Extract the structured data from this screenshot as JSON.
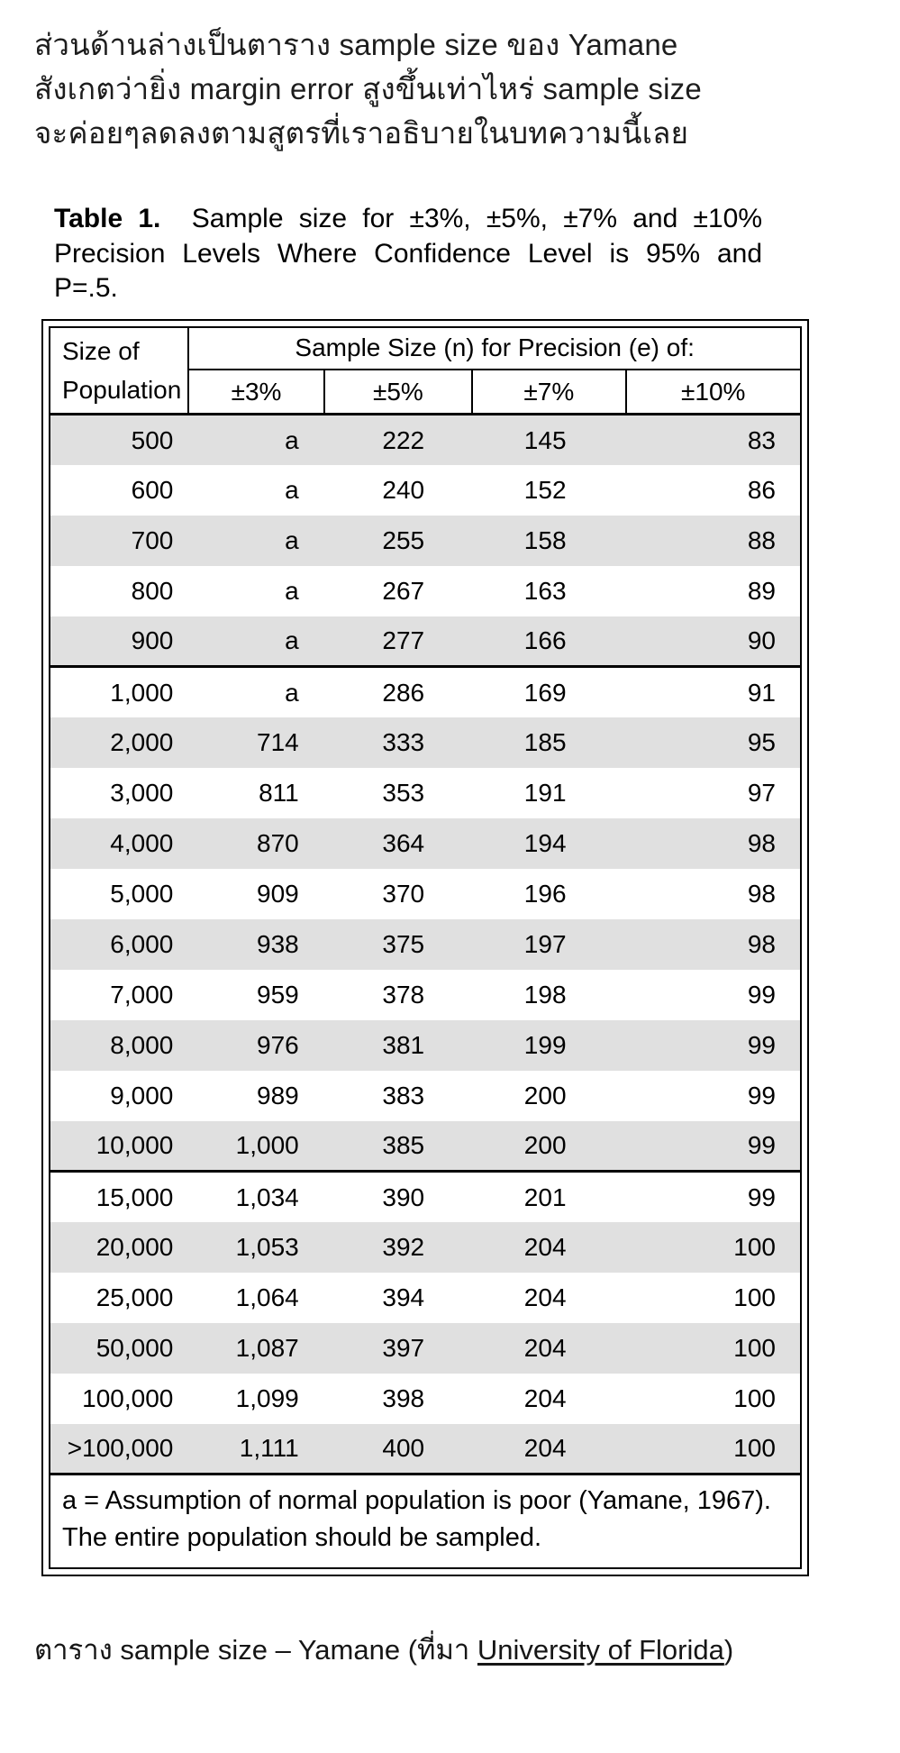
{
  "intro": {
    "lines": [
      "ส่วนด้านล่างเป็นตาราง sample size ของ Yamane",
      "สังเกตว่ายิ่ง margin error สูงขึ้นเท่าไหร่ sample size",
      "จะค่อยๆลดลงตามสูตรที่เราอธิบายในบทความนี้เลย"
    ]
  },
  "table": {
    "caption_label": "Table 1.",
    "caption_text": "Sample size for ±3%, ±5%, ±7% and ±10% Precision Levels Where Confidence Level is 95% and P=.5.",
    "header": {
      "population_label": "Size of Population",
      "group_label": "Sample Size (n) for Precision (e) of:",
      "precisions": [
        "±3%",
        "±5%",
        "±7%",
        "±10%"
      ]
    },
    "row_groups": [
      {
        "rows": [
          [
            "500",
            "a",
            "222",
            "145",
            "83"
          ],
          [
            "600",
            "a",
            "240",
            "152",
            "86"
          ],
          [
            "700",
            "a",
            "255",
            "158",
            "88"
          ],
          [
            "800",
            "a",
            "267",
            "163",
            "89"
          ],
          [
            "900",
            "a",
            "277",
            "166",
            "90"
          ]
        ]
      },
      {
        "rows": [
          [
            "1,000",
            "a",
            "286",
            "169",
            "91"
          ],
          [
            "2,000",
            "714",
            "333",
            "185",
            "95"
          ],
          [
            "3,000",
            "811",
            "353",
            "191",
            "97"
          ],
          [
            "4,000",
            "870",
            "364",
            "194",
            "98"
          ],
          [
            "5,000",
            "909",
            "370",
            "196",
            "98"
          ],
          [
            "6,000",
            "938",
            "375",
            "197",
            "98"
          ],
          [
            "7,000",
            "959",
            "378",
            "198",
            "99"
          ],
          [
            "8,000",
            "976",
            "381",
            "199",
            "99"
          ],
          [
            "9,000",
            "989",
            "383",
            "200",
            "99"
          ],
          [
            "10,000",
            "1,000",
            "385",
            "200",
            "99"
          ]
        ]
      },
      {
        "rows": [
          [
            "15,000",
            "1,034",
            "390",
            "201",
            "99"
          ],
          [
            "20,000",
            "1,053",
            "392",
            "204",
            "100"
          ],
          [
            "25,000",
            "1,064",
            "394",
            "204",
            "100"
          ],
          [
            "50,000",
            "1,087",
            "397",
            "204",
            "100"
          ],
          [
            "100,000",
            "1,099",
            "398",
            "204",
            "100"
          ],
          [
            ">100,000",
            "1,111",
            "400",
            "204",
            "100"
          ]
        ]
      }
    ],
    "footnote": "a = Assumption of normal population is poor (Yamane, 1967).  The entire population should be sampled."
  },
  "caption": {
    "prefix": "ตาราง sample size – Yamane (ที่มา ",
    "link_text": "University of Florida",
    "suffix": ")"
  },
  "colors": {
    "row_shade": "#e0e0e0",
    "table_border": "#000000",
    "text": "#1d1d1d",
    "background": "#ffffff"
  }
}
